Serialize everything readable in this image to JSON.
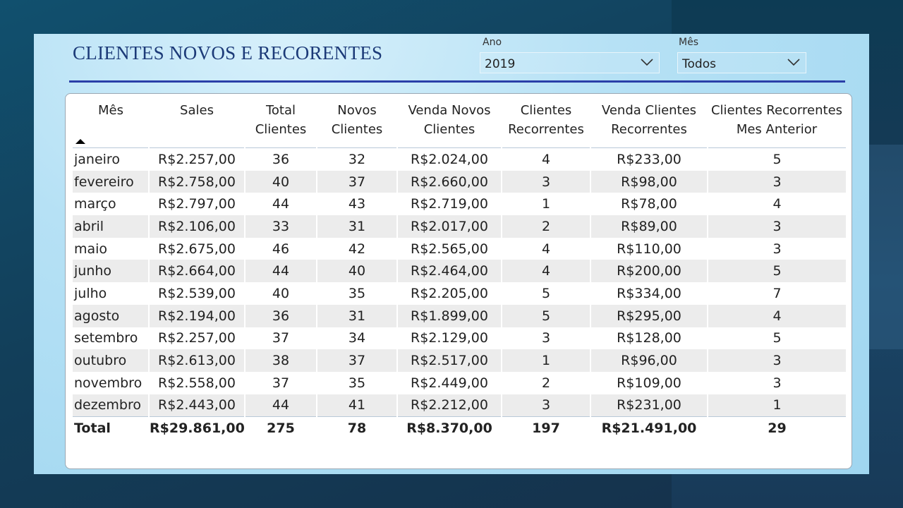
{
  "title": "CLIENTES NOVOS E RECORENTES",
  "filters": {
    "ano": {
      "label": "Ano",
      "value": "2019"
    },
    "mes": {
      "label": "Mês",
      "value": "Todos"
    }
  },
  "table": {
    "columns": [
      "Mês",
      "Sales",
      "Total Clientes",
      "Novos Clientes",
      "Venda Novos Clientes",
      "Clientes Recorrentes",
      "Venda Clientes Recorrentes",
      "Clientes Recorrentes Mes Anterior"
    ],
    "rows": [
      [
        "janeiro",
        "R$2.257,00",
        "36",
        "32",
        "R$2.024,00",
        "4",
        "R$233,00",
        "5"
      ],
      [
        "fevereiro",
        "R$2.758,00",
        "40",
        "37",
        "R$2.660,00",
        "3",
        "R$98,00",
        "3"
      ],
      [
        "março",
        "R$2.797,00",
        "44",
        "43",
        "R$2.719,00",
        "1",
        "R$78,00",
        "4"
      ],
      [
        "abril",
        "R$2.106,00",
        "33",
        "31",
        "R$2.017,00",
        "2",
        "R$89,00",
        "3"
      ],
      [
        "maio",
        "R$2.675,00",
        "46",
        "42",
        "R$2.565,00",
        "4",
        "R$110,00",
        "3"
      ],
      [
        "junho",
        "R$2.664,00",
        "44",
        "40",
        "R$2.464,00",
        "4",
        "R$200,00",
        "5"
      ],
      [
        "julho",
        "R$2.539,00",
        "40",
        "35",
        "R$2.205,00",
        "5",
        "R$334,00",
        "7"
      ],
      [
        "agosto",
        "R$2.194,00",
        "36",
        "31",
        "R$1.899,00",
        "5",
        "R$295,00",
        "4"
      ],
      [
        "setembro",
        "R$2.257,00",
        "37",
        "34",
        "R$2.129,00",
        "3",
        "R$128,00",
        "5"
      ],
      [
        "outubro",
        "R$2.613,00",
        "38",
        "37",
        "R$2.517,00",
        "1",
        "R$96,00",
        "3"
      ],
      [
        "novembro",
        "R$2.558,00",
        "37",
        "35",
        "R$2.449,00",
        "2",
        "R$109,00",
        "3"
      ],
      [
        "dezembro",
        "R$2.443,00",
        "44",
        "41",
        "R$2.212,00",
        "3",
        "R$231,00",
        "1"
      ]
    ],
    "total": [
      "Total",
      "R$29.861,00",
      "275",
      "78",
      "R$8.370,00",
      "197",
      "R$21.491,00",
      "29"
    ]
  },
  "colors": {
    "title": "#1c3a78",
    "divider": "#2a3fa8",
    "stripe": "#ececec"
  },
  "icons": {
    "slicer": "chevron-down-icon",
    "sort": "sort-ascending-icon"
  }
}
